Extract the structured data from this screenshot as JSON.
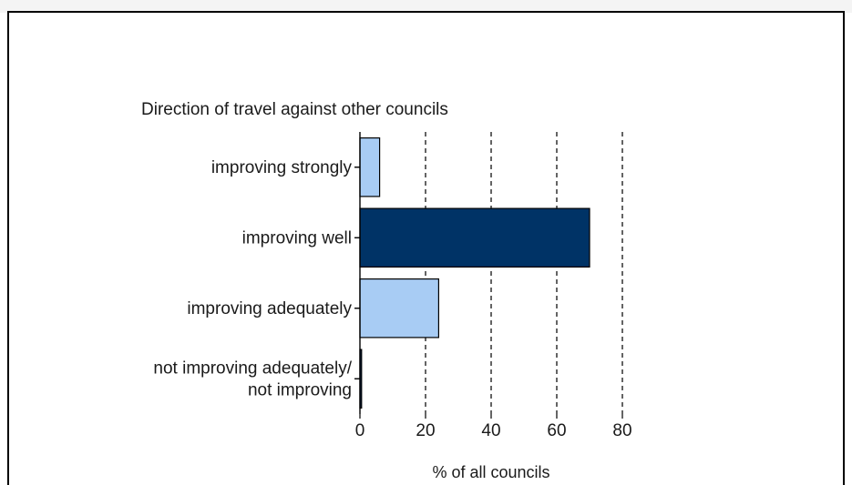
{
  "chart_data": {
    "type": "bar",
    "orientation": "horizontal",
    "title": "Direction of travel against other councils",
    "xlabel": "% of all councils",
    "ylabel": "",
    "categories": [
      "improving strongly",
      "improving well",
      "improving adequately",
      "not improving adequately/\nnot improving"
    ],
    "values": [
      6,
      70,
      24,
      0.5
    ],
    "bar_colors": [
      "#a8ccf4",
      "#003366",
      "#a8ccf4",
      "#003366"
    ],
    "xlim": [
      0,
      80
    ],
    "xticks": [
      0,
      20,
      40,
      60,
      80
    ],
    "grid": "vertical dashed"
  }
}
